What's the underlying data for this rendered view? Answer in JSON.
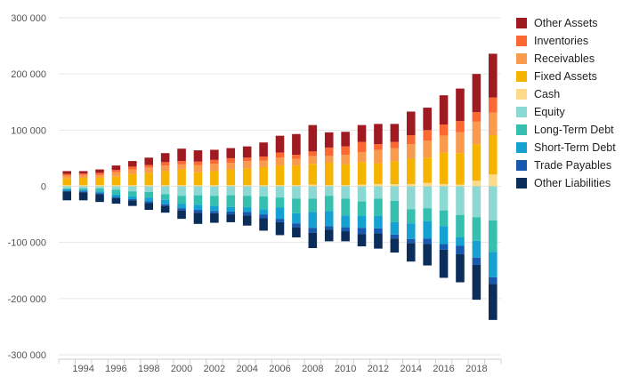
{
  "chart_data": {
    "type": "bar",
    "stacked": true,
    "title": "",
    "xlabel": "",
    "ylabel": "",
    "ylim": [
      -300000,
      300000
    ],
    "y_ticks": [
      300000,
      200000,
      100000,
      0,
      -100000,
      -200000,
      -300000
    ],
    "y_tick_labels": [
      "300 000",
      "200 000",
      "100 000",
      "0",
      "-100 000",
      "-200 000",
      "-300 000"
    ],
    "x_tick_labels": [
      "1994",
      "1996",
      "1998",
      "2000",
      "2002",
      "2004",
      "2006",
      "2008",
      "2010",
      "2012",
      "2014",
      "2016",
      "2018"
    ],
    "categories": [
      "1993",
      "1994",
      "1995",
      "1996",
      "1997",
      "1998",
      "1999",
      "2000",
      "2001",
      "2002",
      "2003",
      "2004",
      "2005",
      "2006",
      "2007",
      "2008",
      "2009",
      "2010",
      "2011",
      "2012",
      "2013",
      "2014",
      "2015",
      "2016",
      "2017",
      "2018",
      "2019"
    ],
    "grid": true,
    "legend_position": "right",
    "asset_series": [
      {
        "name": "Cash",
        "color": "#fdd98a",
        "values": [
          2000,
          2000,
          2000,
          2000,
          2000,
          2000,
          2000,
          2000,
          2000,
          2000,
          2000,
          2000,
          2000,
          2000,
          2000,
          3000,
          2000,
          2000,
          3000,
          4000,
          4000,
          4000,
          6000,
          4000,
          3000,
          10000,
          21000
        ]
      },
      {
        "name": "Fixed Assets",
        "color": "#f6b400",
        "values": [
          12000,
          13000,
          13000,
          15000,
          20000,
          22000,
          25000,
          28000,
          23000,
          25000,
          28000,
          30000,
          32000,
          35000,
          35000,
          37000,
          40000,
          37000,
          40000,
          37000,
          41000,
          45000,
          45000,
          56000,
          56000,
          65000,
          70000
        ]
      },
      {
        "name": "Receivables",
        "color": "#fa9a4c",
        "values": [
          5000,
          5000,
          5000,
          8000,
          8000,
          9000,
          10000,
          9000,
          13000,
          13000,
          12000,
          13000,
          12000,
          14000,
          12000,
          14000,
          12000,
          17000,
          18000,
          24000,
          23000,
          26000,
          30000,
          30000,
          37000,
          40000,
          40000
        ]
      },
      {
        "name": "Inventories",
        "color": "#fc6832",
        "values": [
          3000,
          3000,
          4000,
          4000,
          5000,
          5000,
          6000,
          6000,
          6000,
          7000,
          8000,
          6000,
          7000,
          9000,
          7000,
          8000,
          15000,
          15000,
          18000,
          10000,
          11000,
          16000,
          19000,
          20000,
          20000,
          17000,
          27000
        ]
      },
      {
        "name": "Other Assets",
        "color": "#a01a22",
        "values": [
          5000,
          4000,
          6000,
          8000,
          10000,
          13000,
          16000,
          22000,
          20000,
          18000,
          18000,
          20000,
          25000,
          30000,
          37000,
          47000,
          27000,
          26000,
          30000,
          36000,
          32000,
          42000,
          40000,
          52000,
          58000,
          68000,
          78000
        ]
      }
    ],
    "liability_series": [
      {
        "name": "Equity",
        "color": "#8cd9d4",
        "values": [
          -4000,
          -4000,
          -4000,
          -6000,
          -9000,
          -10000,
          -14000,
          -17000,
          -16000,
          -17000,
          -16000,
          -17000,
          -18000,
          -20000,
          -22000,
          -22000,
          -17000,
          -22000,
          -27000,
          -22000,
          -26000,
          -41000,
          -39000,
          -43000,
          -51000,
          -55000,
          -61000
        ]
      },
      {
        "name": "Long-Term Debt",
        "color": "#34bfaf",
        "values": [
          -1000,
          -2000,
          -5000,
          -9000,
          -9000,
          -10000,
          -10000,
          -14000,
          -17000,
          -18000,
          -21000,
          -21000,
          -23000,
          -18000,
          -26000,
          -24000,
          -27000,
          -30000,
          -26000,
          -31000,
          -38000,
          -25000,
          -23000,
          -28000,
          -40000,
          -42000,
          -56000
        ]
      },
      {
        "name": "Short-Term Debt",
        "color": "#15a2d2",
        "values": [
          -3000,
          -3000,
          -3000,
          -4000,
          -5000,
          -7000,
          -8000,
          -8000,
          -9000,
          -9000,
          -8000,
          -8000,
          -9000,
          -20000,
          -18000,
          -28000,
          -27000,
          -21000,
          -21000,
          -22000,
          -22000,
          -28000,
          -31000,
          -32000,
          -15000,
          -30000,
          -45000
        ]
      },
      {
        "name": "Trade Payables",
        "color": "#1859b0",
        "values": [
          -1000,
          -2000,
          -2000,
          -2000,
          -2000,
          -3000,
          -3000,
          -4000,
          -5000,
          -4000,
          -5000,
          -6000,
          -7000,
          -6000,
          -7000,
          -9000,
          -6000,
          -7000,
          -11000,
          -9000,
          -7000,
          -7000,
          -10000,
          -10000,
          -15000,
          -13000,
          -12000
        ]
      },
      {
        "name": "Other Liabilities",
        "color": "#0a2d5a",
        "values": [
          -16000,
          -14000,
          -14000,
          -10000,
          -10000,
          -12000,
          -12000,
          -15000,
          -20000,
          -17000,
          -14000,
          -18000,
          -22000,
          -23000,
          -18000,
          -27000,
          -21000,
          -18000,
          -22000,
          -27000,
          -25000,
          -33000,
          -38000,
          -50000,
          -50000,
          -62000,
          -64000
        ]
      }
    ],
    "legend_order": [
      "Other Assets",
      "Inventories",
      "Receivables",
      "Fixed Assets",
      "Cash",
      "Equity",
      "Long-Term Debt",
      "Short-Term Debt",
      "Trade Payables",
      "Other Liabilities"
    ]
  }
}
